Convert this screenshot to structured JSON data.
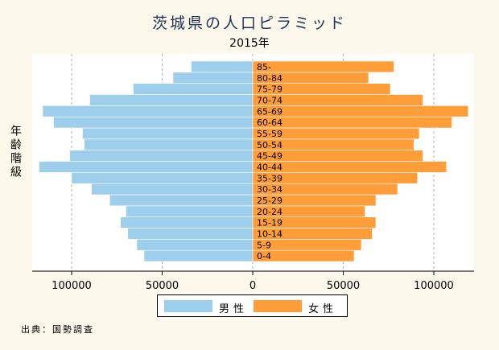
{
  "chart_data": {
    "type": "bar",
    "title": "茨城県の人口ピラミッド",
    "subtitle": "2015年",
    "ylabel": "年齢階級",
    "source": "出典：国勢調査",
    "categories": [
      "0-4",
      "5-9",
      "10-14",
      "15-19",
      "20-24",
      "25-29",
      "30-34",
      "35-39",
      "40-44",
      "45-49",
      "50-54",
      "55-59",
      "60-64",
      "65-69",
      "70-74",
      "75-79",
      "80-84",
      "85-"
    ],
    "series": [
      {
        "name": "男性",
        "color": "#9dceec",
        "values": [
          60000,
          64000,
          69000,
          73000,
          70000,
          79000,
          89000,
          100000,
          118000,
          101000,
          93000,
          94000,
          110000,
          116000,
          90000,
          66000,
          44000,
          34000
        ]
      },
      {
        "name": "女性",
        "color": "#ff9d38",
        "values": [
          56000,
          60000,
          66000,
          68000,
          62000,
          68000,
          80000,
          91000,
          107000,
          94000,
          89000,
          92000,
          110000,
          119000,
          94000,
          76000,
          64000,
          78000
        ]
      }
    ],
    "xticks": [
      100000,
      50000,
      0,
      50000,
      100000
    ],
    "xlim": [
      -122000,
      122000
    ],
    "grid": "vertical dashed",
    "legend": "bottom"
  }
}
